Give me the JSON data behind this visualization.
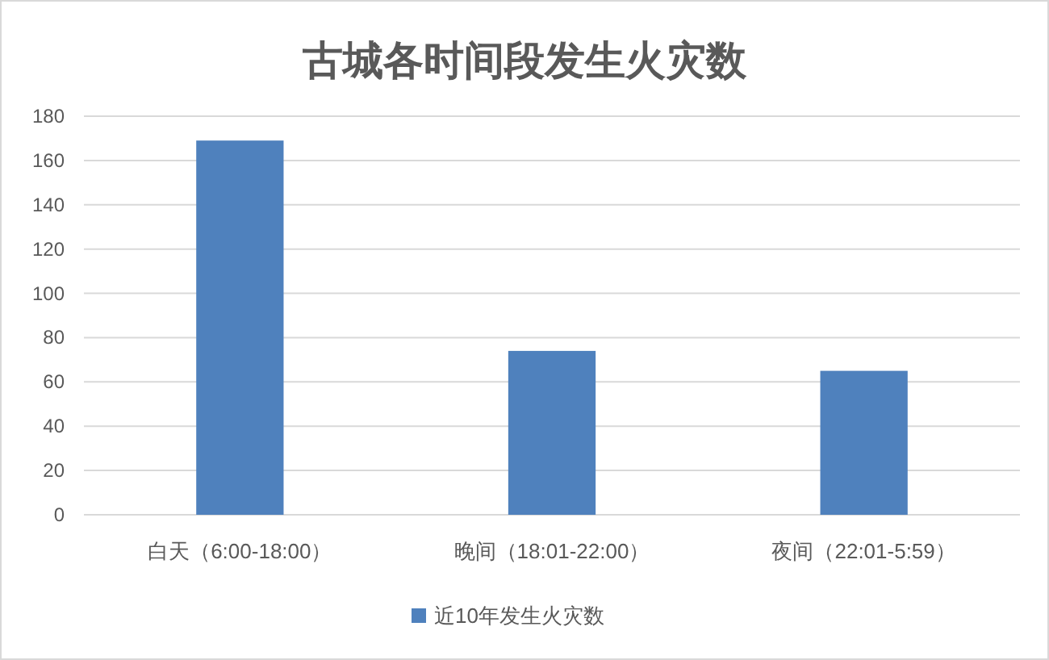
{
  "chart_data": {
    "type": "bar",
    "title": "古城各时间段发生火灾数",
    "categories": [
      "白天（6:00-18:00）",
      "晚间（18:01-22:00）",
      "夜间（22:01-5:59）"
    ],
    "series": [
      {
        "name": "近10年发生火灾数",
        "color": "#4f81bd",
        "values": [
          169,
          74,
          65
        ]
      }
    ],
    "ylim": [
      0,
      180
    ],
    "yticks": [
      0,
      20,
      40,
      60,
      80,
      100,
      120,
      140,
      160,
      180
    ],
    "grid": "y",
    "legend": "bottom"
  }
}
